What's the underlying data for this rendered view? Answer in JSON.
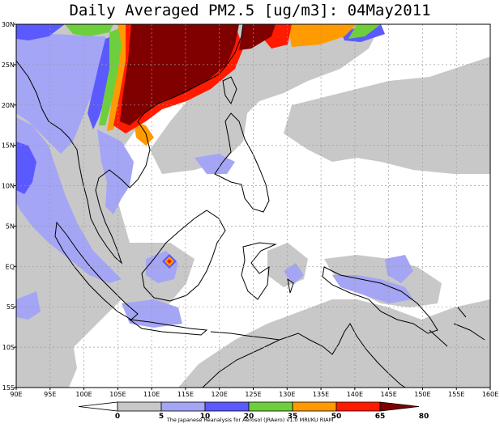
{
  "title": "Daily Averaged PM2.5 [ug/m3]: 04May2011",
  "footer": "The Japanese Reanalysis for Aerosol (JRAero) v1.0 MRI/KU RIAM",
  "lon_labels": [
    "90E",
    "95E",
    "100E",
    "105E",
    "110E",
    "115E",
    "120E",
    "125E",
    "130E",
    "135E",
    "140E",
    "145E",
    "150E",
    "155E",
    "160E"
  ],
  "lat_labels": [
    "30N",
    "25N",
    "20N",
    "15N",
    "10N",
    "5N",
    "EQ",
    "5S",
    "10S",
    "15S"
  ],
  "colorbar": {
    "labels": [
      "0",
      "5",
      "10",
      "20",
      "35",
      "50",
      "65",
      "80"
    ],
    "colors": [
      "#ffffff",
      "#c8c8c8",
      "#a5a5f5",
      "#5a5aff",
      "#6ecf3c",
      "#ff9b00",
      "#ff1a00",
      "#800000"
    ]
  }
}
